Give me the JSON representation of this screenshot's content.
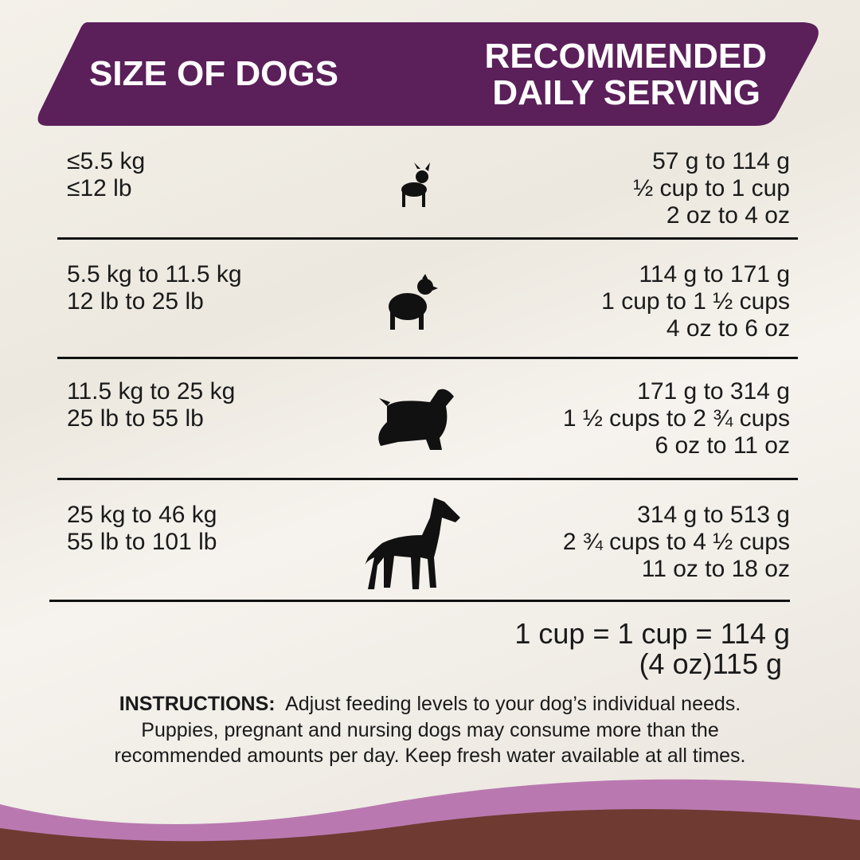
{
  "header": {
    "left": "SIZE OF DOGS",
    "right": [
      "RECOMMENDED",
      "DAILY SERVING"
    ]
  },
  "rows": [
    {
      "size": [
        "≤5.5 kg",
        "≤12 lb"
      ],
      "serving": [
        "57 g to 114 g",
        "½ cup to 1 cup",
        "2 oz to 4 oz"
      ]
    },
    {
      "size": [
        "5.5 kg to 11.5 kg",
        "12 lb to 25 lb"
      ],
      "serving": [
        "114 g to 171 g",
        "1 cup to 1 ½ cups",
        "4 oz to 6 oz"
      ]
    },
    {
      "size": [
        "11.5 kg to 25 kg",
        "25 lb to 55 lb"
      ],
      "serving": [
        "171 g to 314 g",
        "1 ½  cups to 2 ¾ cups",
        "6 oz to 11 oz"
      ]
    },
    {
      "size": [
        "25 kg to 46 kg",
        "55 lb to 101 lb"
      ],
      "serving": [
        "314 g to 513 g",
        "2 ¾ cups to 4 ½  cups",
        "11 oz to 18 oz"
      ]
    }
  ],
  "conversion": [
    "1 cup = 1 cup = 114 g",
    "(4 oz)115 g"
  ],
  "instructions": {
    "label": "INSTRUCTIONS:",
    "lines": [
      "Adjust feeding levels to your dog’s individual needs.",
      "Puppies, pregnant and nursing dogs may consume more than the",
      "recommended amounts per day. Keep fresh water available at all times."
    ]
  }
}
